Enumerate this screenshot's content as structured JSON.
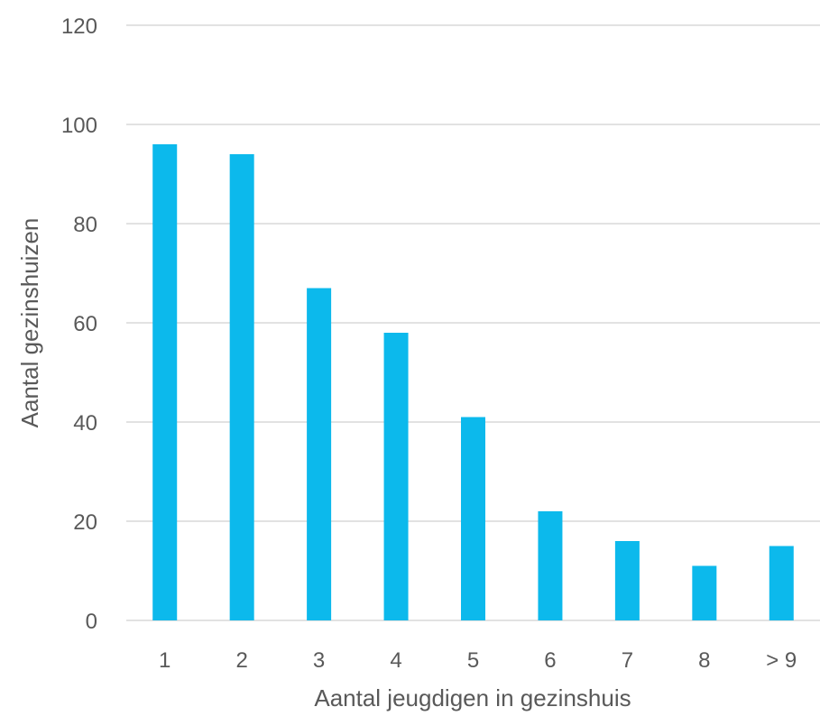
{
  "chart_data": {
    "type": "bar",
    "title": "",
    "xlabel": "Aantal jeugdigen in gezinshuis",
    "ylabel": "Aantal gezinshuizen",
    "categories": [
      "1",
      "2",
      "3",
      "4",
      "5",
      "6",
      "7",
      "8",
      "> 9"
    ],
    "series": [
      {
        "values": [
          96,
          94,
          67,
          58,
          41,
          22,
          16,
          11,
          15
        ],
        "color": "#0cb9ec"
      }
    ],
    "ylim": [
      0,
      120
    ],
    "yticks": [
      "0",
      "20",
      "40",
      "60",
      "80",
      "100",
      "120"
    ],
    "grid": true,
    "legend": "none"
  }
}
